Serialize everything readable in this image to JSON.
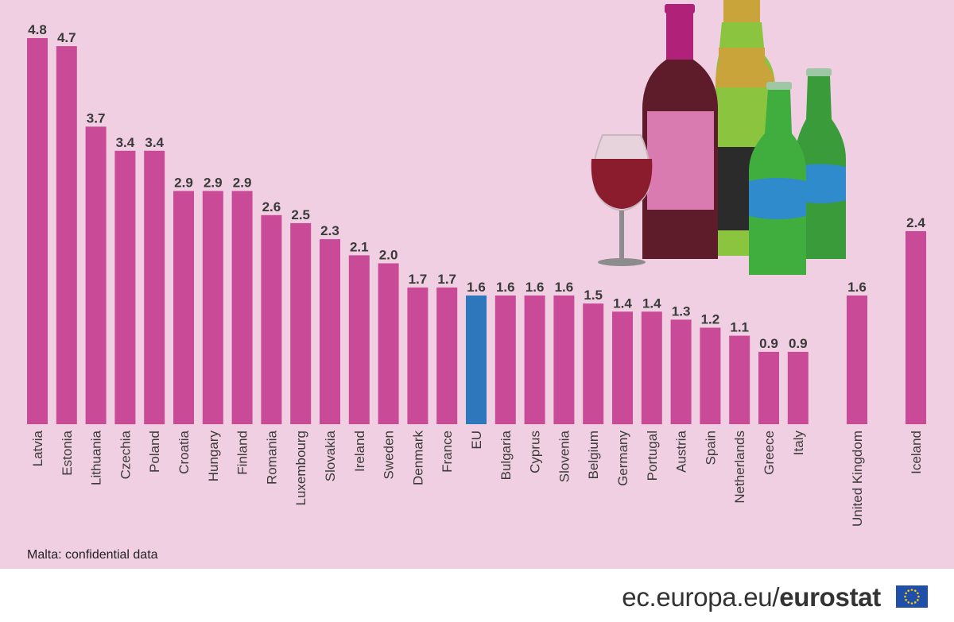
{
  "chart_data": {
    "type": "bar",
    "title": "",
    "xlabel": "",
    "ylabel": "",
    "ylim": [
      0,
      4.8
    ],
    "categories": [
      "Latvia",
      "Estonia",
      "Lithuania",
      "Czechia",
      "Poland",
      "Croatia",
      "Hungary",
      "Finland",
      "Romania",
      "Luxembourg",
      "Slovakia",
      "Ireland",
      "Sweden",
      "Denmark",
      "France",
      "EU",
      "Bulgaria",
      "Cyprus",
      "Slovenia",
      "Belgium",
      "Germany",
      "Portugal",
      "Austria",
      "Spain",
      "Netherlands",
      "Greece",
      "Italy",
      "United Kingdom",
      "Iceland"
    ],
    "values": [
      4.8,
      4.7,
      3.7,
      3.4,
      3.4,
      2.9,
      2.9,
      2.9,
      2.6,
      2.5,
      2.3,
      2.1,
      2.0,
      1.7,
      1.7,
      1.6,
      1.6,
      1.6,
      1.6,
      1.5,
      1.4,
      1.4,
      1.3,
      1.2,
      1.1,
      0.9,
      0.9,
      1.6,
      2.4
    ],
    "labels": [
      "4.8",
      "4.7",
      "3.7",
      "3.4",
      "3.4",
      "2.9",
      "2.9",
      "2.9",
      "2.6",
      "2.5",
      "2.3",
      "2.1",
      "2.0",
      "1.7",
      "1.7",
      "1.6",
      "1.6",
      "1.6",
      "1.6",
      "1.5",
      "1.4",
      "1.4",
      "1.3",
      "1.2",
      "1.1",
      "0.9",
      "0.9",
      "1.6",
      "2.4"
    ],
    "highlight": "EU",
    "colors": {
      "bar": "#c94b98",
      "highlight": "#2f77bd",
      "background": "#efcfe1"
    }
  },
  "note": "Malta: confidential data",
  "footer": {
    "site": "ec.europa.eu/",
    "brand": "eurostat"
  },
  "illustration": {
    "icons": [
      "wine-glass-icon",
      "wine-bottle-icon",
      "champagne-bottle-icon",
      "beer-bottle-icon"
    ]
  }
}
